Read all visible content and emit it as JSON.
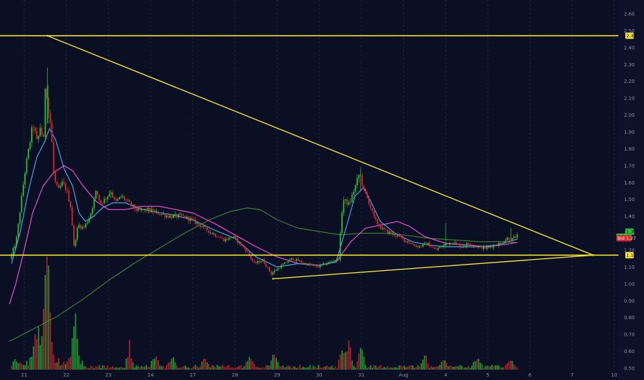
{
  "chart_data": {
    "type": "candlestick",
    "title": "",
    "xlabel": "",
    "ylabel": "",
    "ylim": [
      0.5,
      2.65
    ],
    "x_ticks": [
      "21",
      "22",
      "23",
      "24",
      "27",
      "28",
      "29",
      "30",
      "31",
      "Aug",
      "4",
      "5",
      "6",
      "7",
      "10"
    ],
    "y_ticks": [
      "2.60",
      "2.50",
      "2.40",
      "2.30",
      "2.20",
      "2.10",
      "2.00",
      "1.90",
      "1.80",
      "1.70",
      "1.60",
      "1.50",
      "1.40",
      "1.30",
      "1.20",
      "1.10",
      "1.00",
      "0.90",
      "0.80",
      "0.70",
      "0.60",
      "0.50"
    ],
    "grid": "vertical dashed",
    "price_labels": [
      {
        "name": "upper-level",
        "value": "2.47",
        "color": "#f5e62a"
      },
      {
        "name": "last",
        "value": "1.31",
        "color": "#26c136"
      },
      {
        "name": "ask",
        "label": "Ask",
        "value": "1.28",
        "color": "#26c136"
      },
      {
        "name": "bid",
        "label": "Bid",
        "value": "1.27",
        "color": "#e0262c"
      },
      {
        "name": "support-level",
        "value": "1.17",
        "color": "#f5e62a"
      }
    ],
    "colors": {
      "up": "#26c136",
      "down": "#e0262c",
      "ema_fast": "#4fa3e8",
      "ma_mid": "#e34bc3",
      "ma_slow": "#3f8a2e",
      "drawing": "#f5e62a",
      "background": "#0b0f24",
      "axis_text": "#8e93a6"
    },
    "annotations": [
      {
        "type": "hline",
        "y": 2.47,
        "label": "resistance"
      },
      {
        "type": "hline",
        "y": 1.17,
        "label": "support"
      },
      {
        "type": "trendline",
        "from": [
          0.55,
          2.47
        ],
        "to": [
          13.5,
          1.17
        ]
      },
      {
        "type": "trendline",
        "from": [
          5.9,
          1.03
        ],
        "to": [
          13.5,
          1.17
        ]
      }
    ],
    "price_path": [
      [
        -0.3,
        1.15
      ],
      [
        -0.15,
        1.25
      ],
      [
        -0.05,
        1.45
      ],
      [
        0.05,
        1.65
      ],
      [
        0.15,
        1.8
      ],
      [
        0.25,
        1.95
      ],
      [
        0.35,
        1.83
      ],
      [
        0.42,
        1.93
      ],
      [
        0.5,
        1.85
      ],
      [
        0.55,
        2.25
      ],
      [
        0.6,
        2.05
      ],
      [
        0.68,
        1.92
      ],
      [
        0.75,
        1.62
      ],
      [
        0.85,
        1.55
      ],
      [
        0.95,
        1.6
      ],
      [
        1.05,
        1.55
      ],
      [
        1.15,
        1.45
      ],
      [
        1.22,
        1.22
      ],
      [
        1.32,
        1.35
      ],
      [
        1.45,
        1.33
      ],
      [
        1.6,
        1.4
      ],
      [
        1.75,
        1.55
      ],
      [
        1.85,
        1.48
      ],
      [
        1.95,
        1.5
      ],
      [
        2.1,
        1.55
      ],
      [
        2.2,
        1.48
      ],
      [
        2.35,
        1.52
      ],
      [
        2.55,
        1.47
      ],
      [
        2.75,
        1.43
      ],
      [
        2.95,
        1.44
      ],
      [
        3.2,
        1.42
      ],
      [
        3.5,
        1.4
      ],
      [
        3.8,
        1.4
      ],
      [
        4.0,
        1.38
      ],
      [
        4.2,
        1.35
      ],
      [
        4.5,
        1.3
      ],
      [
        4.8,
        1.26
      ],
      [
        5.0,
        1.28
      ],
      [
        5.3,
        1.2
      ],
      [
        5.5,
        1.12
      ],
      [
        5.7,
        1.14
      ],
      [
        5.9,
        1.06
      ],
      [
        6.1,
        1.1
      ],
      [
        6.4,
        1.15
      ],
      [
        6.7,
        1.12
      ],
      [
        7.0,
        1.1
      ],
      [
        7.3,
        1.13
      ],
      [
        7.5,
        1.15
      ],
      [
        7.6,
        1.5
      ],
      [
        7.75,
        1.47
      ],
      [
        7.9,
        1.58
      ],
      [
        8.0,
        1.66
      ],
      [
        8.1,
        1.55
      ],
      [
        8.2,
        1.5
      ],
      [
        8.35,
        1.38
      ],
      [
        8.55,
        1.32
      ],
      [
        8.75,
        1.3
      ],
      [
        9.0,
        1.27
      ],
      [
        9.2,
        1.24
      ],
      [
        9.4,
        1.22
      ],
      [
        9.6,
        1.24
      ],
      [
        9.8,
        1.2
      ],
      [
        10.0,
        1.23
      ],
      [
        10.2,
        1.25
      ],
      [
        10.4,
        1.22
      ],
      [
        10.6,
        1.24
      ],
      [
        10.8,
        1.22
      ],
      [
        11.0,
        1.21
      ],
      [
        11.2,
        1.23
      ],
      [
        11.35,
        1.24
      ],
      [
        11.5,
        1.27
      ],
      [
        11.6,
        1.26
      ],
      [
        11.7,
        1.28
      ]
    ],
    "ema_fast": [
      [
        -0.3,
        1.12
      ],
      [
        -0.1,
        1.3
      ],
      [
        0.1,
        1.55
      ],
      [
        0.3,
        1.75
      ],
      [
        0.5,
        1.85
      ],
      [
        0.6,
        1.92
      ],
      [
        0.75,
        1.85
      ],
      [
        0.95,
        1.68
      ],
      [
        1.15,
        1.58
      ],
      [
        1.3,
        1.42
      ],
      [
        1.45,
        1.37
      ],
      [
        1.65,
        1.4
      ],
      [
        1.85,
        1.45
      ],
      [
        2.1,
        1.48
      ],
      [
        2.4,
        1.48
      ],
      [
        2.7,
        1.45
      ],
      [
        3.0,
        1.43
      ],
      [
        3.5,
        1.41
      ],
      [
        4.0,
        1.38
      ],
      [
        4.5,
        1.32
      ],
      [
        5.0,
        1.27
      ],
      [
        5.5,
        1.16
      ],
      [
        6.0,
        1.1
      ],
      [
        6.5,
        1.12
      ],
      [
        7.0,
        1.11
      ],
      [
        7.4,
        1.13
      ],
      [
        7.6,
        1.3
      ],
      [
        7.85,
        1.52
      ],
      [
        8.05,
        1.57
      ],
      [
        8.2,
        1.5
      ],
      [
        8.45,
        1.37
      ],
      [
        8.8,
        1.3
      ],
      [
        9.2,
        1.25
      ],
      [
        9.6,
        1.23
      ],
      [
        10.0,
        1.22
      ],
      [
        10.4,
        1.22
      ],
      [
        10.8,
        1.22
      ],
      [
        11.2,
        1.23
      ],
      [
        11.7,
        1.265
      ]
    ],
    "ma_mid": [
      [
        -0.35,
        0.88
      ],
      [
        -0.2,
        1.0
      ],
      [
        0.0,
        1.2
      ],
      [
        0.2,
        1.42
      ],
      [
        0.45,
        1.58
      ],
      [
        0.7,
        1.66
      ],
      [
        0.95,
        1.7
      ],
      [
        1.15,
        1.67
      ],
      [
        1.4,
        1.58
      ],
      [
        1.7,
        1.49
      ],
      [
        2.0,
        1.44
      ],
      [
        2.4,
        1.44
      ],
      [
        2.8,
        1.46
      ],
      [
        3.2,
        1.46
      ],
      [
        3.6,
        1.44
      ],
      [
        4.0,
        1.42
      ],
      [
        4.5,
        1.36
      ],
      [
        5.0,
        1.29
      ],
      [
        5.5,
        1.22
      ],
      [
        6.0,
        1.16
      ],
      [
        6.5,
        1.12
      ],
      [
        7.0,
        1.11
      ],
      [
        7.4,
        1.13
      ],
      [
        7.75,
        1.25
      ],
      [
        8.1,
        1.33
      ],
      [
        8.5,
        1.35
      ],
      [
        8.85,
        1.37
      ],
      [
        9.15,
        1.34
      ],
      [
        9.5,
        1.28
      ],
      [
        10.0,
        1.24
      ],
      [
        10.5,
        1.23
      ],
      [
        11.0,
        1.22
      ],
      [
        11.3,
        1.23
      ],
      [
        11.7,
        1.245
      ]
    ],
    "ma_slow": [
      [
        -0.35,
        0.66
      ],
      [
        0.2,
        0.73
      ],
      [
        0.8,
        0.81
      ],
      [
        1.4,
        0.91
      ],
      [
        2.0,
        1.02
      ],
      [
        2.6,
        1.12
      ],
      [
        3.2,
        1.21
      ],
      [
        3.8,
        1.3
      ],
      [
        4.4,
        1.38
      ],
      [
        4.9,
        1.43
      ],
      [
        5.3,
        1.45
      ],
      [
        5.6,
        1.44
      ],
      [
        6.0,
        1.38
      ],
      [
        6.5,
        1.33
      ],
      [
        7.0,
        1.31
      ],
      [
        7.5,
        1.29
      ],
      [
        8.0,
        1.3
      ],
      [
        8.5,
        1.3
      ],
      [
        9.0,
        1.29
      ],
      [
        9.6,
        1.27
      ],
      [
        10.2,
        1.26
      ],
      [
        10.8,
        1.25
      ],
      [
        11.3,
        1.25
      ],
      [
        11.7,
        1.245
      ]
    ],
    "volume_spikes": [
      [
        0.25,
        0.4
      ],
      [
        0.35,
        0.5
      ],
      [
        0.5,
        0.9
      ],
      [
        0.55,
        1.0
      ],
      [
        0.6,
        0.8
      ],
      [
        1.18,
        0.35
      ],
      [
        1.22,
        0.45
      ],
      [
        2.5,
        0.35
      ],
      [
        3.1,
        0.25
      ],
      [
        3.5,
        0.18
      ],
      [
        4.3,
        0.2
      ],
      [
        5.35,
        0.2
      ],
      [
        5.95,
        0.3
      ],
      [
        7.55,
        0.3
      ],
      [
        7.7,
        0.45
      ],
      [
        8.0,
        0.5
      ],
      [
        9.5,
        0.2
      ],
      [
        9.95,
        0.15
      ],
      [
        10.75,
        0.18
      ],
      [
        11.55,
        0.14
      ]
    ]
  }
}
